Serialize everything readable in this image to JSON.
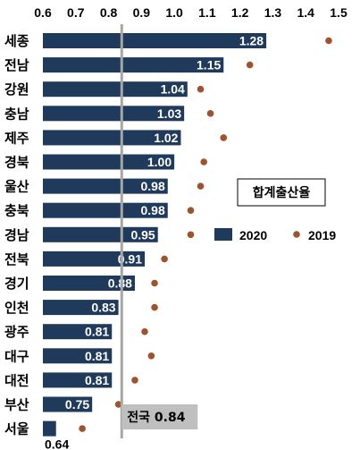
{
  "chart_data": {
    "type": "bar",
    "orientation": "horizontal",
    "title": "합계출산율",
    "categories": [
      "세종",
      "전남",
      "강원",
      "충남",
      "제주",
      "경북",
      "울산",
      "충북",
      "경남",
      "전북",
      "경기",
      "인천",
      "광주",
      "대구",
      "대전",
      "부산",
      "서울"
    ],
    "series": [
      {
        "name": "2020",
        "kind": "bar",
        "color": "#1f3a5a",
        "values": [
          1.28,
          1.15,
          1.04,
          1.03,
          1.02,
          1.0,
          0.98,
          0.98,
          0.95,
          0.91,
          0.88,
          0.83,
          0.81,
          0.81,
          0.81,
          0.75,
          0.64
        ],
        "labels": [
          "1.28",
          "1.15",
          "1.04",
          "1.03",
          "1.02",
          "1.00",
          "0.98",
          "0.98",
          "0.95",
          "0.91",
          "0.88",
          "0.83",
          "0.81",
          "0.81",
          "0.81",
          "0.75",
          "0.64"
        ]
      },
      {
        "name": "2019",
        "kind": "dot",
        "color": "#a0522d",
        "values": [
          1.47,
          1.23,
          1.08,
          1.11,
          1.15,
          1.09,
          1.08,
          1.05,
          1.05,
          0.97,
          0.94,
          0.94,
          0.91,
          0.93,
          0.88,
          0.83,
          0.72
        ]
      }
    ],
    "x_ticks": [
      "0.6",
      "0.7",
      "0.8",
      "0.9",
      "1.0",
      "1.1",
      "1.2",
      "1.3",
      "1.4",
      "1.5"
    ],
    "xlim": [
      0.6,
      1.5
    ],
    "reference_line": {
      "value": 0.84,
      "label": "전국 0.84"
    },
    "legend_placement": "right"
  }
}
